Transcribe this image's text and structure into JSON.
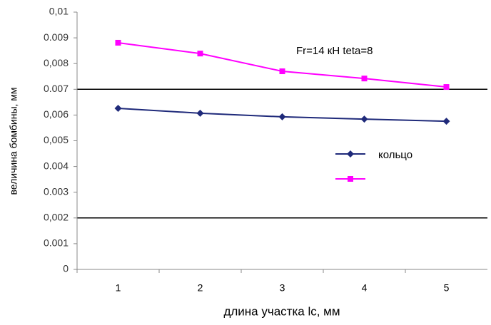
{
  "chart_data": {
    "type": "line",
    "annotation": "Fr=14 кН  teta=8",
    "x_label": "длина участка lc, мм",
    "y_label": "величина бомбины, мм",
    "categories": [
      "1",
      "2",
      "3",
      "4",
      "5"
    ],
    "series": [
      {
        "name": "кольцо",
        "color": "#1f2a7a",
        "marker": "diamond",
        "values": [
          0.00626,
          0.00607,
          0.00593,
          0.00584,
          0.00576
        ]
      },
      {
        "color": "#ff00ff",
        "marker": "square",
        "values": [
          0.00881,
          0.00839,
          0.0077,
          0.00742,
          0.00709
        ]
      }
    ],
    "ylim": [
      0,
      0.01
    ],
    "yticks": [
      0,
      0.001,
      {
        "value": 0.002,
        "label": "0,002"
      },
      0.003,
      0.004,
      {
        "value": 0.005,
        "label": "0,005"
      },
      {
        "value": 0.006,
        "label": "0,006"
      },
      0.007,
      {
        "value": 0.008,
        "label": "0,008"
      },
      0.009,
      {
        "value": 0.01,
        "label": "0,01"
      }
    ],
    "hlines": [
      0.002,
      0.007
    ]
  }
}
